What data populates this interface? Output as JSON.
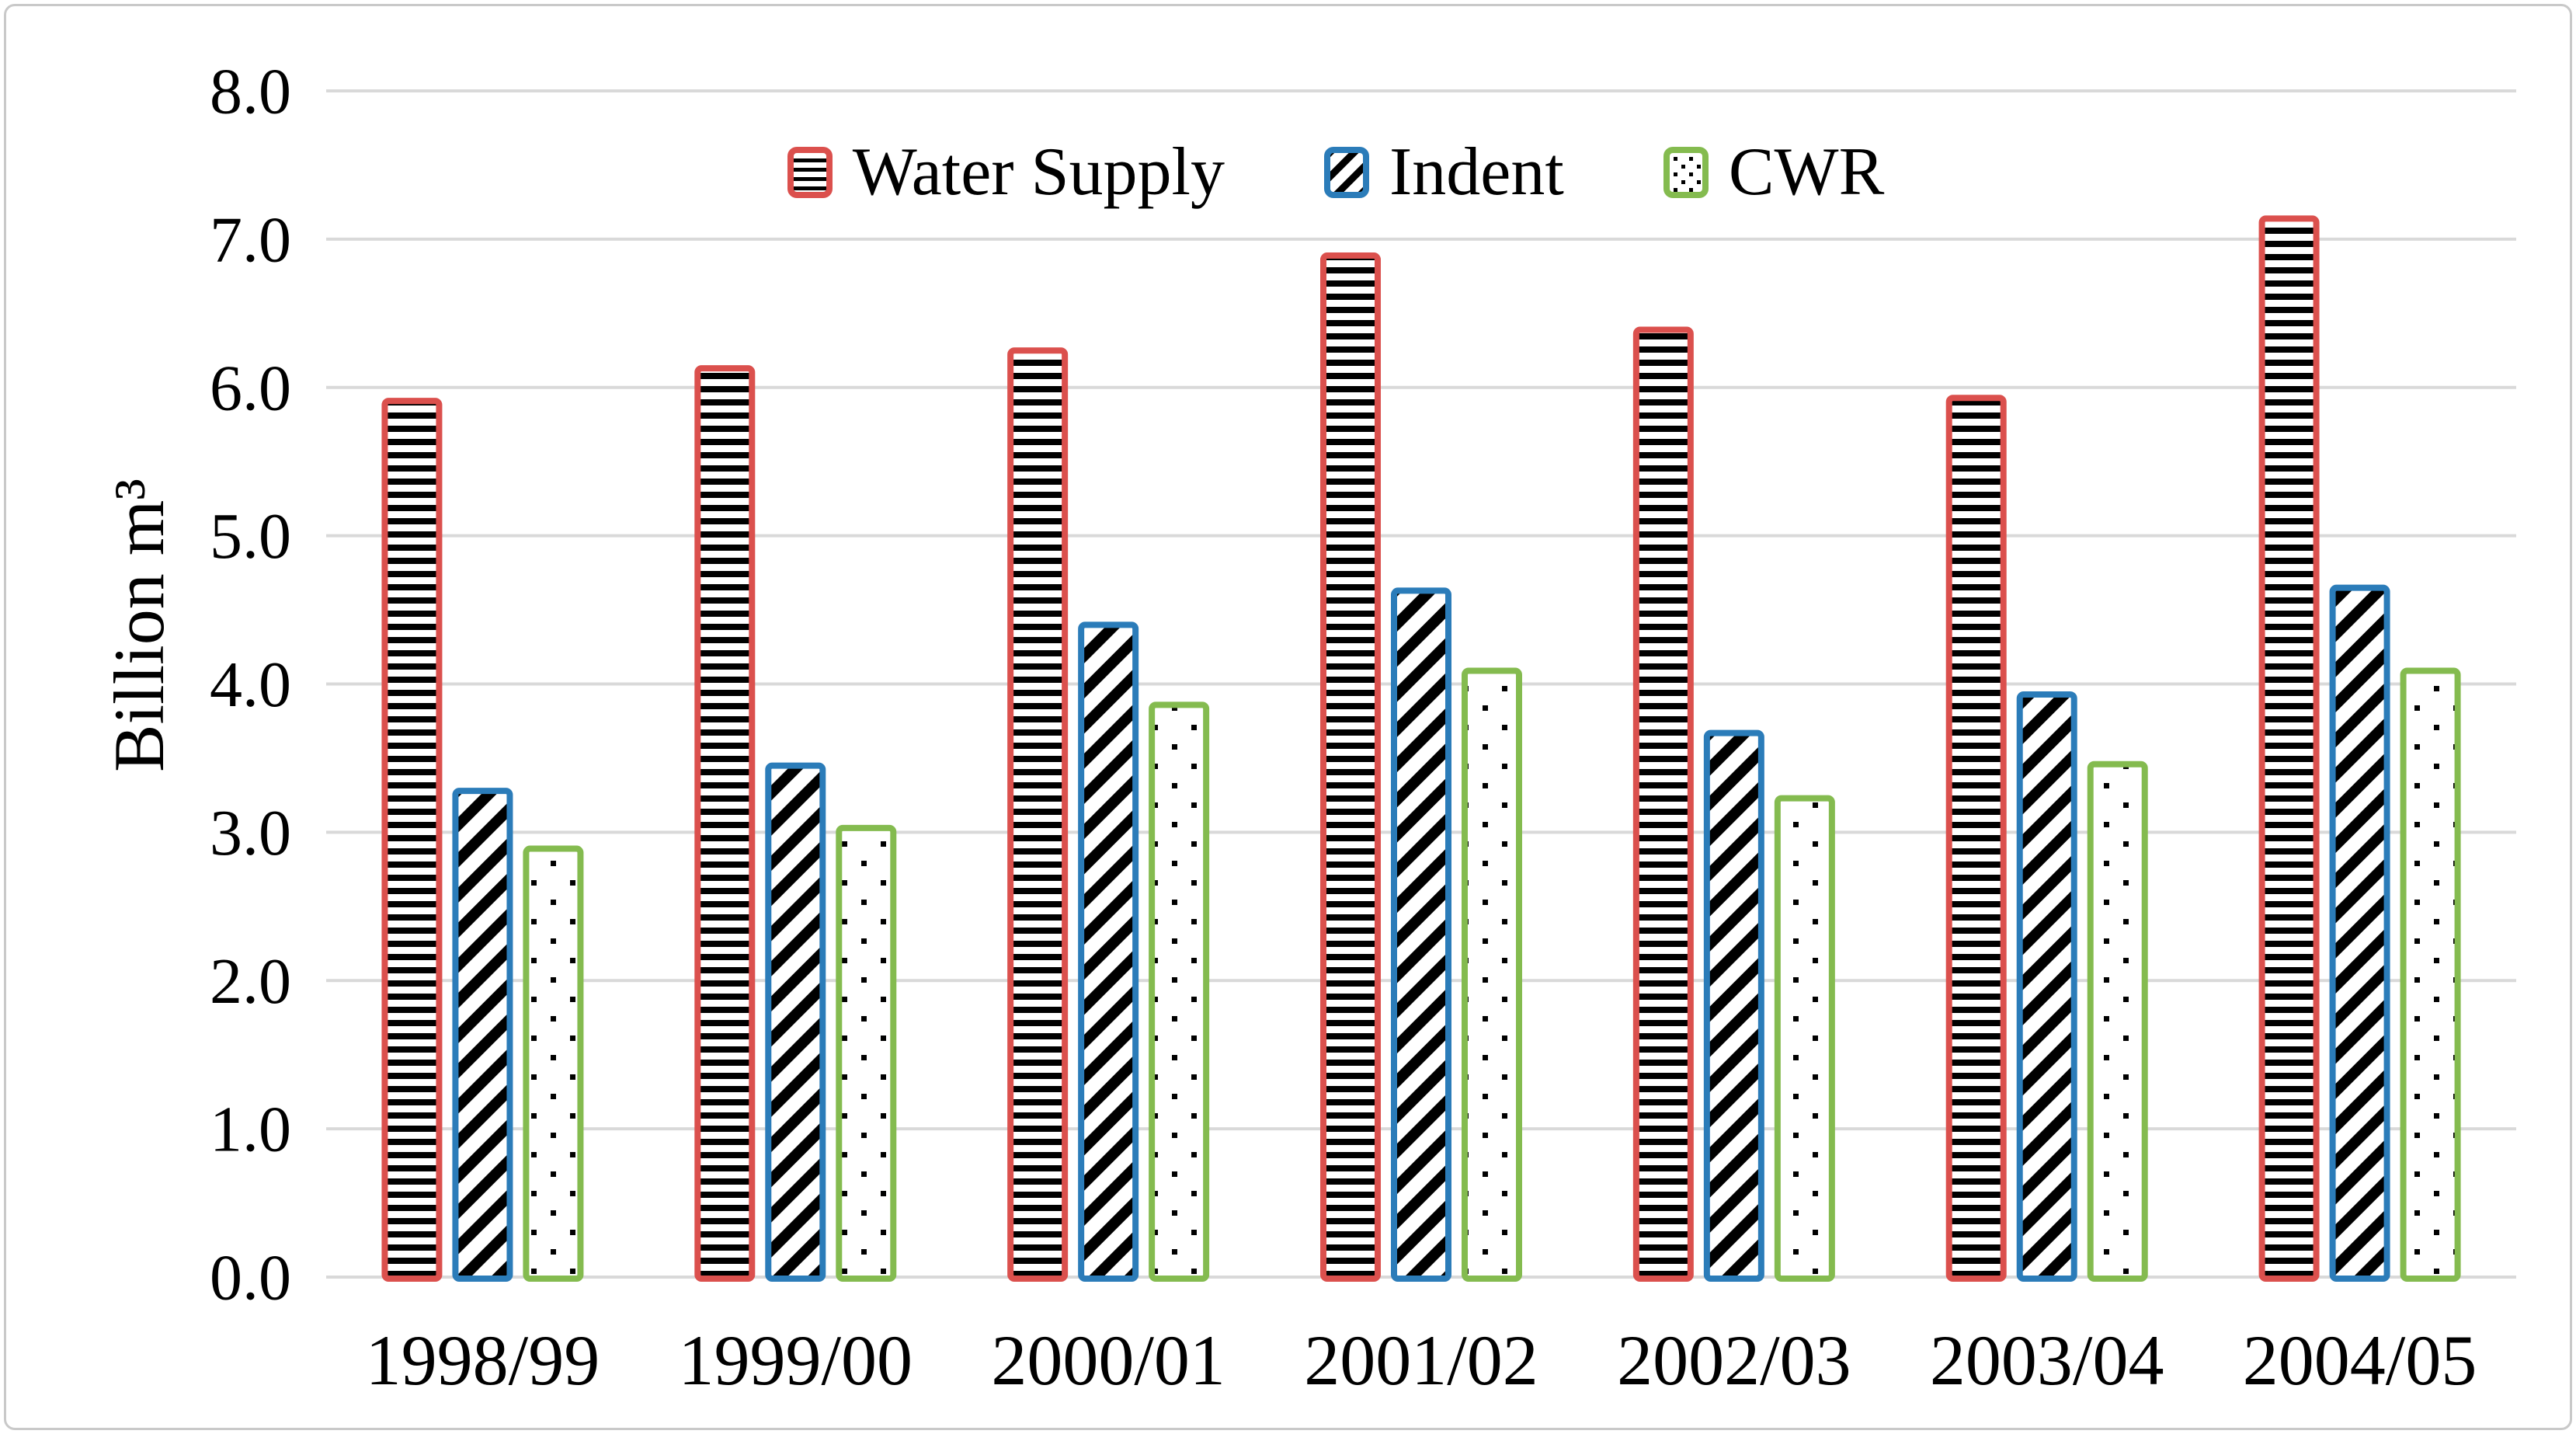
{
  "figure": {
    "background": "#ffffff",
    "border_color": "#c9c9c9"
  },
  "chart_data": {
    "type": "bar",
    "title": "",
    "xlabel": "",
    "ylabel": "Billion m³",
    "categories": [
      "1998/99",
      "1999/00",
      "2000/01",
      "2001/02",
      "2002/03",
      "2003/04",
      "2004/05"
    ],
    "series": [
      {
        "name": "Water Supply",
        "border_color": "#db504d",
        "pattern": "horizontal-stripes",
        "values": [
          5.93,
          6.15,
          6.27,
          6.91,
          6.41,
          5.95,
          7.16
        ]
      },
      {
        "name": "Indent",
        "border_color": "#2b7cb9",
        "pattern": "diagonal-stripes",
        "values": [
          3.3,
          3.47,
          4.42,
          4.65,
          3.69,
          3.95,
          4.67
        ]
      },
      {
        "name": "CWR",
        "border_color": "#84bb4f",
        "pattern": "dots",
        "values": [
          2.91,
          3.05,
          3.88,
          4.11,
          3.25,
          3.48,
          4.11
        ]
      }
    ],
    "ylim": [
      0.0,
      8.0
    ],
    "ytick_step": 1.0,
    "ytick_labels": [
      "0.0",
      "1.0",
      "2.0",
      "3.0",
      "4.0",
      "5.0",
      "6.0",
      "7.0",
      "8.0"
    ],
    "grid": true,
    "gridline_color": "#d9d9d9",
    "legend_position": "top",
    "pattern_fg": "#000000",
    "pattern_bg": "#ffffff",
    "tick_label_color": "#000000"
  }
}
